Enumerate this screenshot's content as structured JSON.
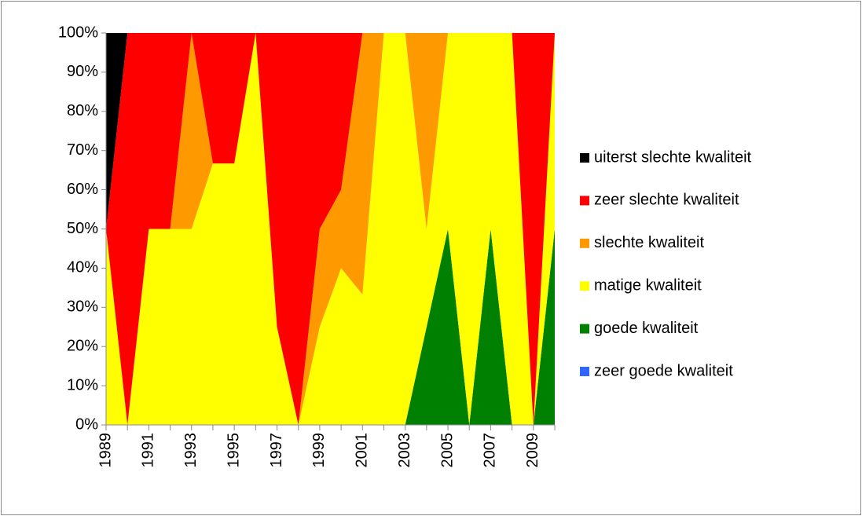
{
  "chart_data": {
    "type": "stacked_area_100",
    "categories": [
      "1989",
      null,
      "1991",
      null,
      "1993",
      null,
      "1995",
      null,
      "1997",
      null,
      "1999",
      null,
      "2001",
      null,
      "2003",
      null,
      "2005",
      null,
      "2007",
      null,
      "2009",
      null
    ],
    "series": [
      {
        "name": "zeer goede kwaliteit",
        "color": "#3366ff",
        "values": [
          0,
          0,
          0,
          0,
          0,
          0,
          0,
          0,
          0,
          0,
          0,
          0,
          0,
          0,
          0,
          0,
          0,
          0,
          0,
          0,
          0,
          0
        ]
      },
      {
        "name": "goede kwaliteit",
        "color": "#008000",
        "values": [
          0,
          0,
          0,
          0,
          0,
          0,
          0,
          0,
          0,
          0,
          0,
          0,
          0,
          0,
          0,
          25,
          50,
          0,
          50,
          0,
          0,
          50
        ]
      },
      {
        "name": "matige kwaliteit",
        "color": "#ffff00",
        "values": [
          50,
          0,
          50,
          50,
          50,
          66.7,
          66.7,
          100,
          25,
          0,
          25,
          40,
          33.3,
          100,
          100,
          25,
          50,
          100,
          50,
          100,
          0,
          50
        ]
      },
      {
        "name": "slechte kwaliteit",
        "color": "#ff9900",
        "values": [
          0,
          0,
          0,
          0,
          50,
          0,
          0,
          0,
          0,
          0,
          25,
          20,
          66.7,
          0,
          0,
          50,
          0,
          0,
          0,
          0,
          0,
          0
        ]
      },
      {
        "name": "zeer slechte kwaliteit",
        "color": "#ff0000",
        "values": [
          0,
          100,
          50,
          50,
          0,
          33.3,
          33.3,
          0,
          75,
          100,
          50,
          40,
          0,
          0,
          0,
          0,
          0,
          0,
          0,
          0,
          100,
          0
        ]
      },
      {
        "name": "uiterst slechte kwaliteit",
        "color": "#000000",
        "values": [
          50,
          0,
          0,
          0,
          0,
          0,
          0,
          0,
          0,
          0,
          0,
          0,
          0,
          0,
          0,
          0,
          0,
          0,
          0,
          0,
          0,
          0
        ]
      }
    ],
    "ylim": [
      0,
      100
    ],
    "yticks": [
      {
        "value": 0,
        "label": "0%"
      },
      {
        "value": 10,
        "label": "10%"
      },
      {
        "value": 20,
        "label": "20%"
      },
      {
        "value": 30,
        "label": "30%"
      },
      {
        "value": 40,
        "label": "40%"
      },
      {
        "value": 50,
        "label": "50%"
      },
      {
        "value": 60,
        "label": "60%"
      },
      {
        "value": 70,
        "label": "70%"
      },
      {
        "value": 80,
        "label": "80%"
      },
      {
        "value": 90,
        "label": "90%"
      },
      {
        "value": 100,
        "label": "100%"
      }
    ],
    "legend": "right"
  }
}
